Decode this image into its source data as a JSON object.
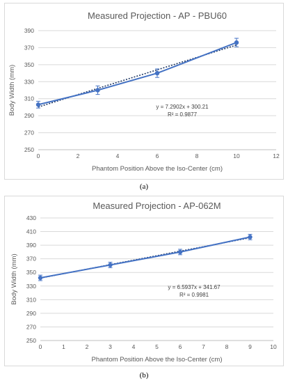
{
  "chart_data": [
    {
      "type": "line",
      "title": "Measured Projection - AP - PBU60",
      "xlabel": "Phantom Position Above the Iso-Center (cm)",
      "ylabel": "Body Width (mm)",
      "xlim": [
        0,
        12
      ],
      "ylim": [
        250,
        390
      ],
      "x_ticks": [
        0,
        2,
        4,
        6,
        8,
        10,
        12
      ],
      "y_ticks": [
        250,
        270,
        290,
        310,
        330,
        350,
        370,
        390
      ],
      "grid": "horizontal",
      "series": [
        {
          "x": [
            0,
            3,
            6,
            10
          ],
          "values": [
            303,
            320,
            340,
            376
          ],
          "error": [
            4,
            5,
            5,
            5
          ],
          "color": "#4472c4",
          "marker": "circle"
        }
      ],
      "trendline": {
        "style": "dotted",
        "color": "#1f3864",
        "slope": 7.2902,
        "intercept": 300.21,
        "x_range": [
          0,
          10
        ],
        "equation": "y = 7.2902x + 300.21",
        "r_squared": "R² = 0.9877"
      },
      "panel_label": "(a)"
    },
    {
      "type": "line",
      "title": "Measured Projection - AP-062M",
      "xlabel": "Phantom Position Above the Iso-Center (cm)",
      "ylabel": "Body Width (mm)",
      "xlim": [
        0,
        10
      ],
      "ylim": [
        250,
        430
      ],
      "x_ticks": [
        0,
        1,
        2,
        3,
        4,
        5,
        6,
        7,
        8,
        9,
        10
      ],
      "y_ticks": [
        250,
        270,
        290,
        310,
        330,
        350,
        370,
        390,
        410,
        430
      ],
      "grid": "horizontal",
      "series": [
        {
          "x": [
            0,
            3,
            6,
            9
          ],
          "values": [
            342,
            361,
            380,
            402
          ],
          "error": [
            4,
            4,
            4,
            4
          ],
          "color": "#4472c4",
          "marker": "circle"
        }
      ],
      "trendline": {
        "style": "dotted",
        "color": "#1f3864",
        "slope": 6.5937,
        "intercept": 341.67,
        "x_range": [
          0,
          9
        ],
        "equation": "y = 6.5937x + 341.67",
        "r_squared": "R² = 0.9981"
      },
      "panel_label": "(b)"
    }
  ]
}
